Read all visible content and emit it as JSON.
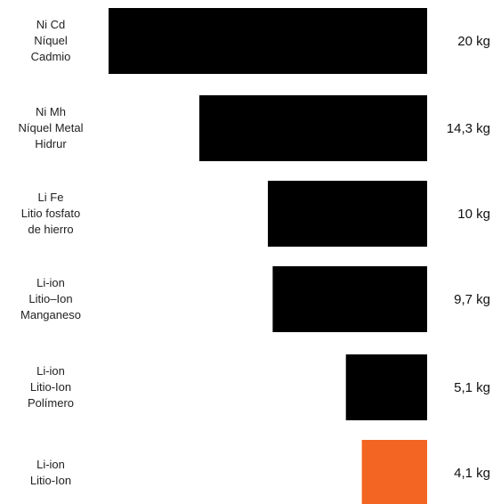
{
  "chart_data": {
    "type": "bar",
    "orientation": "horizontal",
    "categories": [
      [
        "Ni Cd",
        "Níquel",
        "Cadmio"
      ],
      [
        "Ni Mh",
        "Níquel Metal",
        "Hidrur"
      ],
      [
        "Li Fe",
        "Litio fosfato",
        "de hierro"
      ],
      [
        "Li-ion",
        "Litio–Ion",
        "Manganeso"
      ],
      [
        "Li-ion",
        "Litio-Ion",
        "Polímero"
      ],
      [
        "Li-ion",
        "Litio-Ion"
      ]
    ],
    "values": [
      20,
      14.3,
      10,
      9.7,
      5.1,
      4.1
    ],
    "value_labels": [
      "20 kg",
      "14,3 kg",
      "10 kg",
      "9,7 kg",
      "5,1 kg",
      "4,1 kg"
    ],
    "unit": "kg",
    "bar_alignment": "right",
    "colors": [
      "#000000",
      "#000000",
      "#000000",
      "#000000",
      "#000000",
      "#f26522"
    ],
    "title": "",
    "xlabel": "",
    "ylabel": "",
    "grid": false,
    "legend": "none"
  }
}
